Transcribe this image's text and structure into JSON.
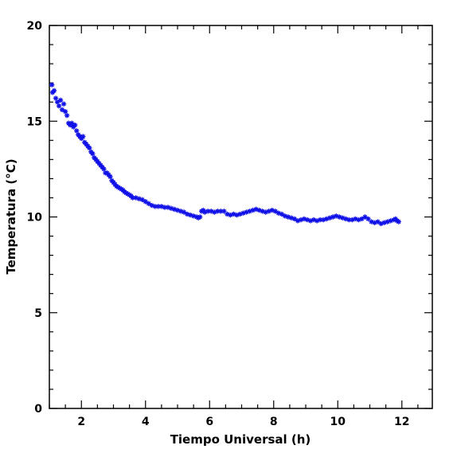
{
  "chart_data": {
    "type": "scatter",
    "title": "",
    "xlabel": "Tiempo Universal (h)",
    "ylabel": "Temperatura (°C)",
    "xlim": [
      1.0,
      12.95
    ],
    "ylim": [
      0,
      20
    ],
    "xticks": [
      2,
      4,
      6,
      8,
      10,
      12
    ],
    "yticks": [
      0,
      5,
      10,
      15,
      20
    ],
    "x_minor_step": 0.5,
    "y_minor_step": 1,
    "grid": false,
    "legend": "none",
    "marker": "asterisk",
    "color": "#1010e8",
    "series": [
      {
        "points": [
          [
            1.08,
            16.9
          ],
          [
            1.1,
            16.5
          ],
          [
            1.15,
            16.6
          ],
          [
            1.2,
            16.2
          ],
          [
            1.25,
            16.0
          ],
          [
            1.3,
            15.8
          ],
          [
            1.35,
            16.1
          ],
          [
            1.4,
            15.6
          ],
          [
            1.45,
            15.9
          ],
          [
            1.5,
            15.5
          ],
          [
            1.55,
            15.3
          ],
          [
            1.6,
            14.9
          ],
          [
            1.65,
            14.8
          ],
          [
            1.7,
            14.9
          ],
          [
            1.75,
            14.7
          ],
          [
            1.8,
            14.8
          ],
          [
            1.85,
            14.5
          ],
          [
            1.9,
            14.3
          ],
          [
            1.95,
            14.2
          ],
          [
            2.0,
            14.1
          ],
          [
            2.05,
            14.2
          ],
          [
            2.1,
            13.9
          ],
          [
            2.15,
            13.8
          ],
          [
            2.2,
            13.7
          ],
          [
            2.25,
            13.6
          ],
          [
            2.3,
            13.4
          ],
          [
            2.35,
            13.3
          ],
          [
            2.4,
            13.1
          ],
          [
            2.45,
            13.0
          ],
          [
            2.5,
            12.9
          ],
          [
            2.55,
            12.8
          ],
          [
            2.6,
            12.7
          ],
          [
            2.65,
            12.6
          ],
          [
            2.7,
            12.5
          ],
          [
            2.75,
            12.3
          ],
          [
            2.8,
            12.3
          ],
          [
            2.85,
            12.2
          ],
          [
            2.9,
            12.1
          ],
          [
            2.95,
            11.9
          ],
          [
            3.0,
            11.8
          ],
          [
            3.05,
            11.7
          ],
          [
            3.1,
            11.6
          ],
          [
            3.15,
            11.55
          ],
          [
            3.2,
            11.5
          ],
          [
            3.25,
            11.45
          ],
          [
            3.3,
            11.4
          ],
          [
            3.35,
            11.3
          ],
          [
            3.4,
            11.25
          ],
          [
            3.45,
            11.2
          ],
          [
            3.5,
            11.15
          ],
          [
            3.55,
            11.1
          ],
          [
            3.6,
            11.0
          ],
          [
            3.7,
            11.0
          ],
          [
            3.8,
            10.95
          ],
          [
            3.9,
            10.9
          ],
          [
            4.0,
            10.8
          ],
          [
            4.1,
            10.7
          ],
          [
            4.2,
            10.6
          ],
          [
            4.3,
            10.55
          ],
          [
            4.4,
            10.55
          ],
          [
            4.5,
            10.55
          ],
          [
            4.6,
            10.5
          ],
          [
            4.7,
            10.5
          ],
          [
            4.8,
            10.45
          ],
          [
            4.9,
            10.4
          ],
          [
            5.0,
            10.35
          ],
          [
            5.1,
            10.3
          ],
          [
            5.2,
            10.25
          ],
          [
            5.3,
            10.15
          ],
          [
            5.4,
            10.1
          ],
          [
            5.5,
            10.05
          ],
          [
            5.6,
            10.0
          ],
          [
            5.65,
            9.95
          ],
          [
            5.7,
            10.0
          ],
          [
            5.75,
            10.3
          ],
          [
            5.8,
            10.35
          ],
          [
            5.85,
            10.25
          ],
          [
            5.95,
            10.3
          ],
          [
            6.05,
            10.3
          ],
          [
            6.15,
            10.25
          ],
          [
            6.25,
            10.3
          ],
          [
            6.35,
            10.3
          ],
          [
            6.45,
            10.3
          ],
          [
            6.55,
            10.15
          ],
          [
            6.65,
            10.1
          ],
          [
            6.75,
            10.15
          ],
          [
            6.85,
            10.1
          ],
          [
            6.95,
            10.15
          ],
          [
            7.05,
            10.2
          ],
          [
            7.15,
            10.25
          ],
          [
            7.25,
            10.3
          ],
          [
            7.35,
            10.35
          ],
          [
            7.45,
            10.4
          ],
          [
            7.55,
            10.35
          ],
          [
            7.65,
            10.3
          ],
          [
            7.75,
            10.25
          ],
          [
            7.85,
            10.3
          ],
          [
            7.95,
            10.35
          ],
          [
            8.05,
            10.3
          ],
          [
            8.15,
            10.2
          ],
          [
            8.25,
            10.15
          ],
          [
            8.35,
            10.05
          ],
          [
            8.45,
            10.0
          ],
          [
            8.55,
            9.95
          ],
          [
            8.65,
            9.9
          ],
          [
            8.75,
            9.8
          ],
          [
            8.85,
            9.85
          ],
          [
            8.95,
            9.9
          ],
          [
            9.05,
            9.85
          ],
          [
            9.15,
            9.8
          ],
          [
            9.25,
            9.85
          ],
          [
            9.35,
            9.8
          ],
          [
            9.45,
            9.85
          ],
          [
            9.55,
            9.85
          ],
          [
            9.65,
            9.9
          ],
          [
            9.75,
            9.95
          ],
          [
            9.85,
            10.0
          ],
          [
            9.95,
            10.05
          ],
          [
            10.05,
            10.0
          ],
          [
            10.15,
            9.95
          ],
          [
            10.25,
            9.9
          ],
          [
            10.35,
            9.85
          ],
          [
            10.45,
            9.85
          ],
          [
            10.55,
            9.9
          ],
          [
            10.65,
            9.85
          ],
          [
            10.75,
            9.9
          ],
          [
            10.85,
            10.0
          ],
          [
            10.95,
            9.9
          ],
          [
            11.05,
            9.75
          ],
          [
            11.15,
            9.7
          ],
          [
            11.25,
            9.75
          ],
          [
            11.35,
            9.65
          ],
          [
            11.45,
            9.7
          ],
          [
            11.55,
            9.75
          ],
          [
            11.65,
            9.8
          ],
          [
            11.75,
            9.85
          ],
          [
            11.8,
            9.9
          ],
          [
            11.85,
            9.8
          ],
          [
            11.9,
            9.75
          ]
        ]
      }
    ]
  }
}
